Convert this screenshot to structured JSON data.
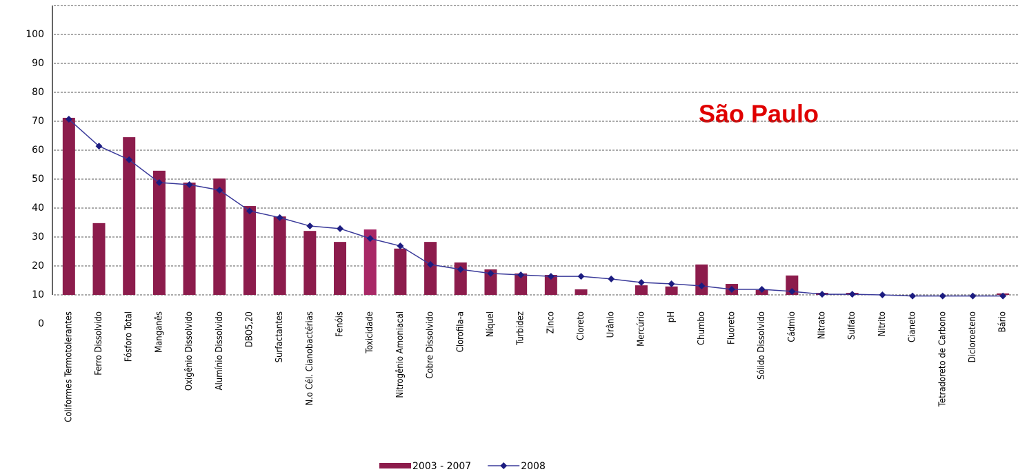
{
  "chart_data": {
    "type": "bar_line",
    "title": "São Paulo",
    "categories": [
      "Coliformes Termotolerantes",
      "Ferro Dissolvido",
      "Fósforo Total",
      "Manganês",
      "Oxigênio Dissolvido",
      "Alumínio Dissolvido",
      "DBO5,20",
      "Surfactantes",
      "N.o Cél. Cianobactérias",
      "Fenóis",
      "Toxicidade",
      "Nitrogênio Amoniacal",
      "Cobre Dissolvido",
      "Clorofila-a",
      "Níquel",
      "Turbidez",
      "Zinco",
      "Cloreto",
      "Urânio",
      "Mercúrio",
      "pH",
      "Chumbo",
      "Fluoreto",
      "Sólido Dissolvido",
      "Cádmio",
      "Nitrato",
      "Sulfato",
      "Nitrito",
      "Cianeto",
      "Tetradoreto de Carbono",
      "Dicloroeteno",
      "Bário"
    ],
    "series": [
      {
        "name": "2003 - 2007",
        "kind": "bar",
        "color": "#8c1c4c",
        "colors": [
          "#8c1c4c",
          "#8c1c4c",
          "#8c1c4c",
          "#8c1c4c",
          "#8c1c4c",
          "#8c1c4c",
          "#8c1c4c",
          "#8c1c4c",
          "#8c1c4c",
          "#8c1c4c",
          "#a82866",
          "#8c1c4c",
          "#8c1c4c",
          "#8c1c4c",
          "#8c1c4c",
          "#8c1c4c",
          "#8c1c4c",
          "#8c1c4c",
          "#8c1c4c",
          "#8c1c4c",
          "#8c1c4c",
          "#8c1c4c",
          "#8c1c4c",
          "#8c1c4c",
          "#8c1c4c",
          "#8c1c4c",
          "#8c1c4c",
          "#8c1c4c",
          "#8c1c4c",
          "#8c1c4c",
          "#8c1c4c",
          "#8c1c4c"
        ],
        "values": [
          71.2,
          34.8,
          64.5,
          52.9,
          48.8,
          50.2,
          40.7,
          37.1,
          32.1,
          28.3,
          32.6,
          26.0,
          28.3,
          21.2,
          18.8,
          17.4,
          16.9,
          11.9,
          null,
          13.3,
          12.9,
          20.5,
          13.8,
          11.7,
          16.7,
          10.7,
          10.7,
          10,
          10,
          10,
          10,
          10.5
        ]
      },
      {
        "name": "2008",
        "kind": "line",
        "color": "#3a3a9a",
        "marker_color": "#1c1c80",
        "values": [
          70.7,
          61.4,
          56.7,
          48.8,
          48.1,
          46.2,
          39.0,
          36.7,
          33.8,
          32.9,
          29.5,
          26.9,
          20.5,
          18.8,
          17.4,
          16.9,
          16.4,
          16.4,
          15.5,
          14.3,
          13.8,
          13.1,
          11.9,
          11.9,
          11.2,
          10.2,
          10.2,
          10,
          9.6,
          9.6,
          9.6,
          9.6
        ]
      }
    ],
    "ylim": [
      10,
      110
    ],
    "yticks": [
      0,
      10,
      20,
      30,
      40,
      50,
      60,
      70,
      80,
      90,
      100
    ],
    "grid": true
  }
}
